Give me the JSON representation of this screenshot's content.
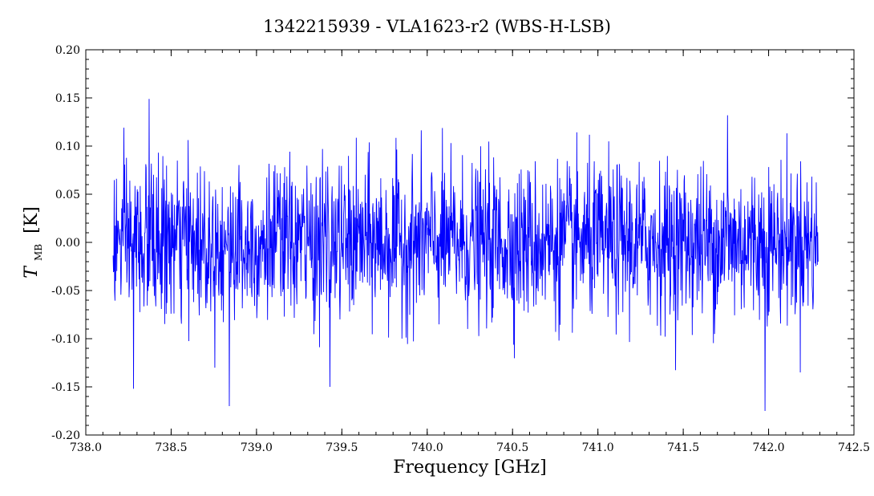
{
  "chart_data": {
    "type": "line",
    "title": "1342215939 - VLA1623-r2 (WBS-H-LSB)",
    "xlabel": "Frequency [GHz]",
    "ylabel_symbol": "T",
    "ylabel_subscript": "MB",
    "ylabel_unit": "[K]",
    "xlim": [
      738.0,
      742.5
    ],
    "ylim": [
      -0.2,
      0.2
    ],
    "x_ticks": [
      738.0,
      738.5,
      739.0,
      739.5,
      740.0,
      740.5,
      741.0,
      741.5,
      742.0,
      742.5
    ],
    "x_tick_labels": [
      "738.0",
      "738.5",
      "739.0",
      "739.5",
      "740.0",
      "740.5",
      "741.0",
      "741.5",
      "742.0",
      "742.5"
    ],
    "y_ticks": [
      -0.2,
      -0.15,
      -0.1,
      -0.05,
      0.0,
      0.05,
      0.1,
      0.15,
      0.2
    ],
    "y_tick_labels": [
      "-0.20",
      "-0.15",
      "-0.10",
      "-0.05",
      "0.00",
      "0.05",
      "0.10",
      "0.15",
      "0.20"
    ],
    "grid": false,
    "series": [
      {
        "color": "#0000ff",
        "x_range": [
          738.16,
          742.29
        ],
        "noise_rms": 0.04,
        "mean": 0.0,
        "notable_points": [
          {
            "x": 738.28,
            "y": -0.152
          },
          {
            "x": 738.37,
            "y": 0.149
          },
          {
            "x": 738.84,
            "y": -0.17
          },
          {
            "x": 739.43,
            "y": -0.15
          },
          {
            "x": 741.76,
            "y": 0.132
          },
          {
            "x": 741.98,
            "y": -0.175
          }
        ]
      }
    ]
  }
}
